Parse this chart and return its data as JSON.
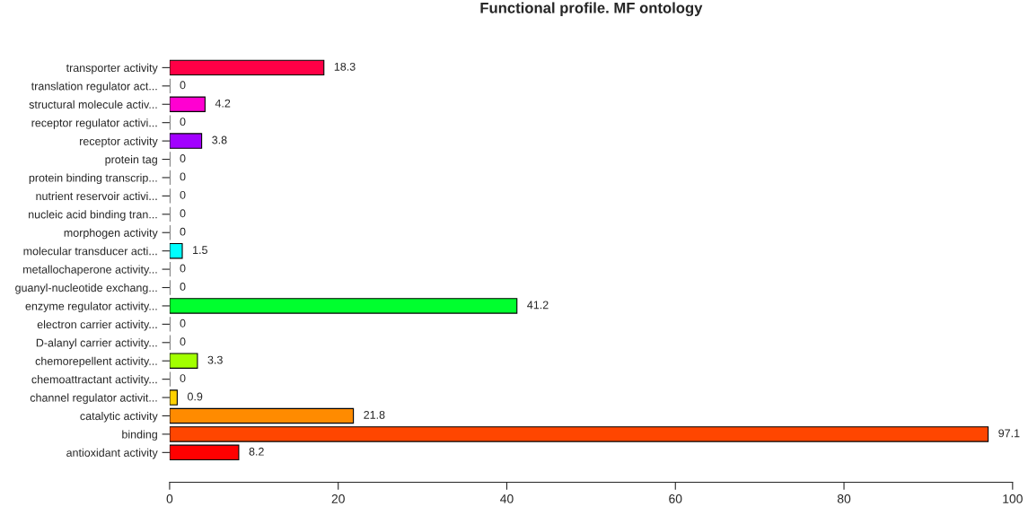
{
  "chart_data": {
    "type": "bar",
    "title": "Functional profile. MF ontology",
    "orientation": "horizontal",
    "categories": [
      "transporter activity",
      "translation regulator act...",
      "structural molecule activ...",
      "receptor regulator activi...",
      "receptor activity",
      "protein tag",
      "protein binding transcrip...",
      "nutrient reservoir activi...",
      "nucleic acid binding tran...",
      "morphogen activity",
      "molecular transducer acti...",
      "metallochaperone activity...",
      "guanyl-nucleotide exchang...",
      "enzyme regulator activity...",
      "electron carrier activity...",
      "D-alanyl carrier activity...",
      "chemorepellent activity...",
      "chemoattractant activity...",
      "channel regulator activit...",
      "catalytic activity",
      "binding",
      "antioxidant activity"
    ],
    "values": [
      18.3,
      0,
      4.2,
      0,
      3.8,
      0,
      0,
      0,
      0,
      0,
      1.5,
      0,
      0,
      41.2,
      0,
      0,
      3.3,
      0,
      0.9,
      21.8,
      97.1,
      8.2
    ],
    "colors": [
      "#FF0046",
      "#000000",
      "#FF00D1",
      "#000000",
      "#A200FF",
      "#000000",
      "#000000",
      "#000000",
      "#000000",
      "#000000",
      "#00FFFF",
      "#000000",
      "#000000",
      "#00FF2E",
      "#000000",
      "#000000",
      "#A2FF00",
      "#000000",
      "#FFD100",
      "#FF8B00",
      "#FF4600",
      "#FF0000"
    ],
    "xlim": [
      0,
      100
    ],
    "xticks": [
      0,
      20,
      40,
      60,
      80,
      100
    ],
    "data_labels": true,
    "grid": false
  }
}
